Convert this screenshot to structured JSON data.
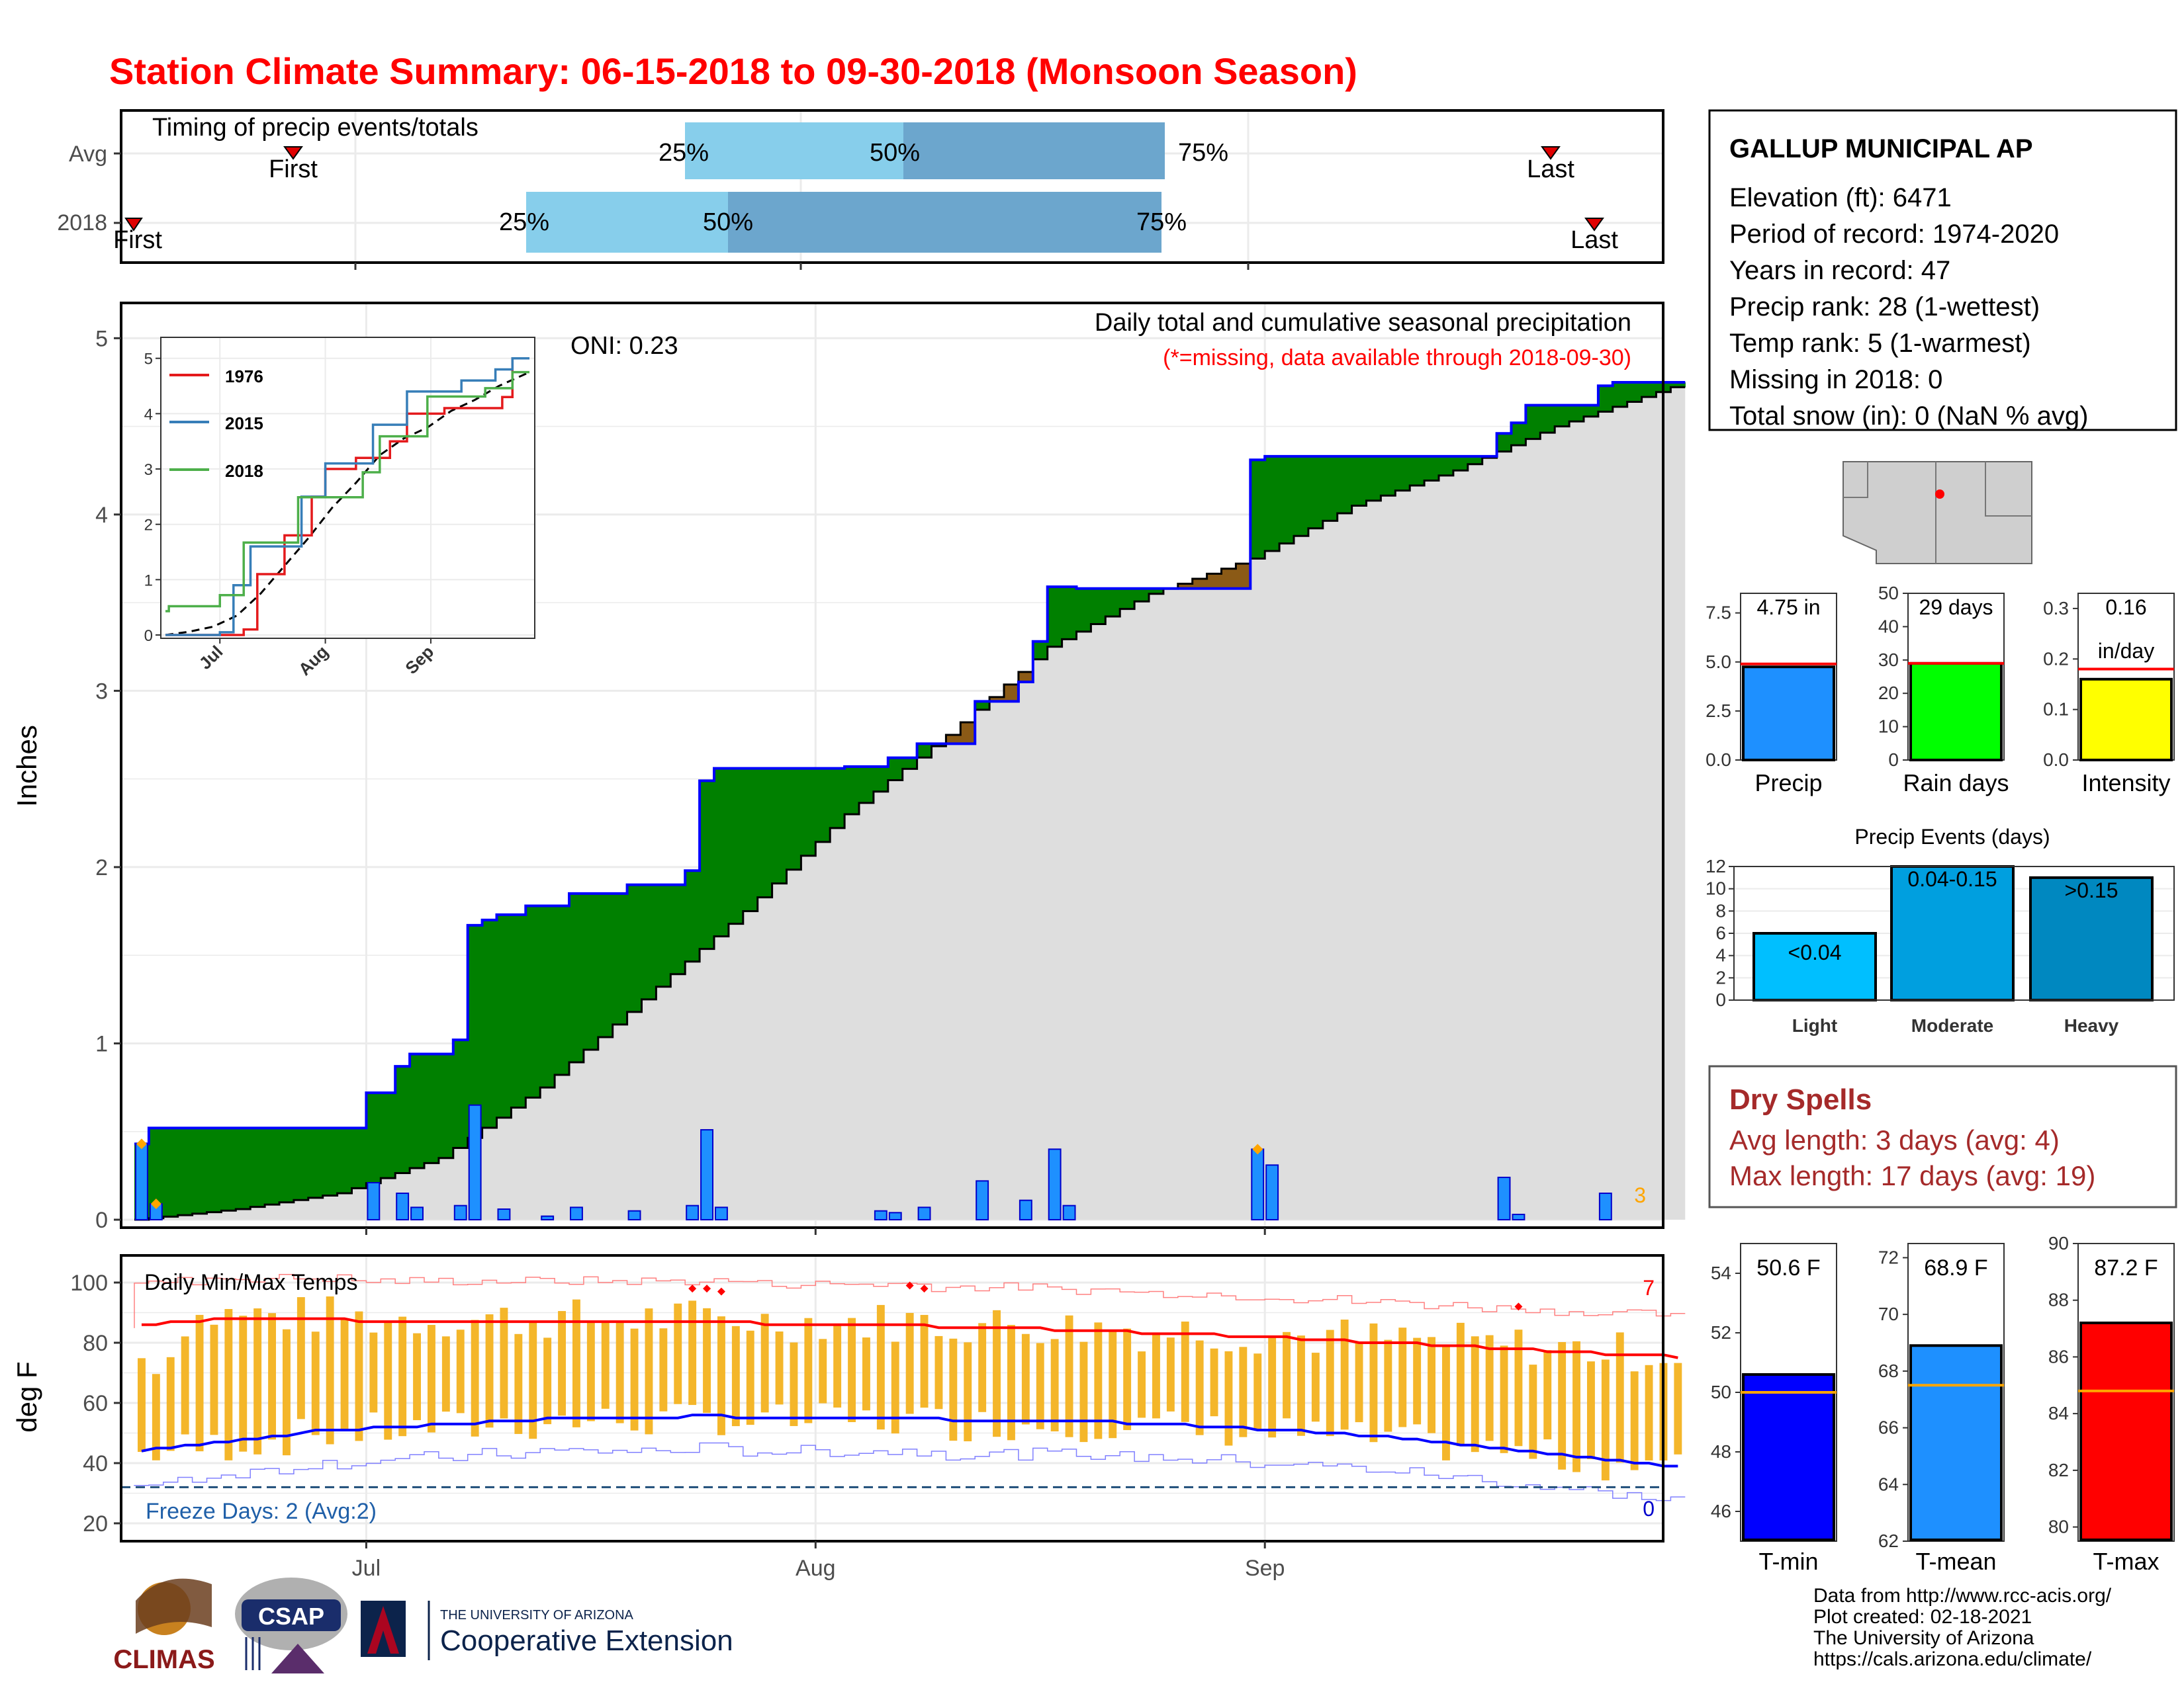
{
  "title": "Station Climate Summary: 06-15-2018 to 09-30-2018 (Monsoon Season)",
  "timing": {
    "label": "Timing of precip events/totals",
    "rows": [
      "Avg",
      "2018"
    ],
    "avg": {
      "first": "First",
      "last": "Last",
      "p25": "25%",
      "p50": "50%",
      "p75": "75%"
    },
    "y2018": {
      "first": "First",
      "last": "Last",
      "p25": "25%",
      "p50": "50%",
      "p75": "75%"
    }
  },
  "main": {
    "ylabel": "Inches",
    "annotation": "Daily total and cumulative seasonal precipitation",
    "missing_note": "(*=missing, data available through 2018-09-30)",
    "oni": "ONI: 0.23",
    "corner_count": "3",
    "yticks": [
      "0",
      "1",
      "2",
      "3",
      "4",
      "5"
    ]
  },
  "inset": {
    "legend": [
      "1976",
      "2015",
      "2018"
    ],
    "yticks": [
      "0",
      "1",
      "2",
      "3",
      "4",
      "5"
    ],
    "xticks": [
      "Jul",
      "Aug",
      "Sep"
    ],
    "colors": {
      "1976": "#e41a1c",
      "2015": "#377eb8",
      "2018": "#4daf4a"
    }
  },
  "temps": {
    "ylabel": "deg F",
    "label": "Daily Min/Max Temps",
    "freeze": "Freeze Days: 2 (Avg:2)",
    "hot_count": "7",
    "cold_count": "0",
    "yticks": [
      "20",
      "40",
      "60",
      "80",
      "100"
    ],
    "xticks": [
      "Jul",
      "Aug",
      "Sep"
    ]
  },
  "station": {
    "name": "GALLUP MUNICIPAL AP",
    "lines": [
      "Elevation (ft): 6471",
      "Period of record: 1974-2020",
      "Years in record: 47",
      "Precip rank: 28 (1-wettest)",
      "Temp rank: 5 (1-warmest)",
      "Missing in 2018: 0",
      "Total snow (in): 0 (NaN % avg)"
    ]
  },
  "mini_bars": [
    {
      "label": "Precip",
      "value_text": "4.75 in",
      "yticks": [
        "0.0",
        "2.5",
        "5.0",
        "7.5"
      ],
      "color": "#1e90ff"
    },
    {
      "label": "Rain days",
      "value_text": "29 days",
      "yticks": [
        "0",
        "10",
        "20",
        "30",
        "40",
        "50"
      ],
      "color": "#00ff00"
    },
    {
      "label": "Intensity",
      "value_text": "0.16",
      "value_text2": "in/day",
      "yticks": [
        "0.0",
        "0.1",
        "0.2",
        "0.3"
      ],
      "color": "#ffff00"
    }
  ],
  "events": {
    "title": "Precip Events (days)",
    "categories": [
      "Light",
      "Moderate",
      "Heavy"
    ],
    "bar_labels": [
      "<0.04",
      "0.04-0.15",
      ">0.15"
    ],
    "yticks": [
      "0",
      "2",
      "4",
      "6",
      "8",
      "10",
      "12"
    ]
  },
  "dry": {
    "title": "Dry Spells",
    "avg": "Avg length: 3 days (avg: 4)",
    "max": "Max length: 17 days (avg: 19)"
  },
  "temp_bars": [
    {
      "label": "T-min",
      "value_text": "50.6 F",
      "yticks": [
        "46",
        "48",
        "50",
        "52",
        "54"
      ],
      "color": "#0000ff"
    },
    {
      "label": "T-mean",
      "value_text": "68.9 F",
      "yticks": [
        "62",
        "64",
        "66",
        "68",
        "70",
        "72"
      ],
      "color": "#1e90ff"
    },
    {
      "label": "T-max",
      "value_text": "87.2 F",
      "yticks": [
        "80",
        "82",
        "84",
        "86",
        "88",
        "90"
      ],
      "color": "#ff0000"
    }
  ],
  "credits": [
    "Data from http://www.rcc-acis.org/",
    "Plot created: 02-18-2021",
    "The University of Arizona",
    "https://cals.arizona.edu/climate/"
  ],
  "logos": {
    "climas": "CLIMAS",
    "csap": "CSAP",
    "ua_small": "THE UNIVERSITY OF ARIZONA",
    "ua_big": "Cooperative Extension"
  },
  "chart_data": [
    {
      "type": "area",
      "title": "Daily total and cumulative seasonal precipitation",
      "ylabel": "Inches",
      "ylim": [
        0,
        5.2
      ],
      "xlim": [
        "2018-06-15",
        "2018-09-30"
      ],
      "series": [
        {
          "name": "2018",
          "step_points": [
            [
              "2018-06-15",
              0.43
            ],
            [
              "2018-06-16",
              0.52
            ],
            [
              "2018-07-01",
              0.72
            ],
            [
              "2018-07-03",
              0.87
            ],
            [
              "2018-07-04",
              0.94
            ],
            [
              "2018-07-07",
              1.02
            ],
            [
              "2018-07-08",
              1.67
            ],
            [
              "2018-07-09",
              1.7
            ],
            [
              "2018-07-10",
              1.73
            ],
            [
              "2018-07-12",
              1.78
            ],
            [
              "2018-07-15",
              1.85
            ],
            [
              "2018-07-19",
              1.9
            ],
            [
              "2018-07-23",
              1.98
            ],
            [
              "2018-07-24",
              2.49
            ],
            [
              "2018-07-25",
              2.56
            ],
            [
              "2018-08-03",
              2.57
            ],
            [
              "2018-08-06",
              2.62
            ],
            [
              "2018-08-08",
              2.7
            ],
            [
              "2018-08-12",
              2.94
            ],
            [
              "2018-08-15",
              3.05
            ],
            [
              "2018-08-16",
              3.28
            ],
            [
              "2018-08-17",
              3.59
            ],
            [
              "2018-08-19",
              3.58
            ],
            [
              "2018-08-31",
              4.31
            ],
            [
              "2018-09-01",
              4.33
            ],
            [
              "2018-09-17",
              4.46
            ],
            [
              "2018-09-18",
              4.52
            ],
            [
              "2018-09-19",
              4.62
            ],
            [
              "2018-09-24",
              4.73
            ],
            [
              "2018-09-25",
              4.75
            ]
          ]
        },
        {
          "name": "Average",
          "points": [
            [
              "2018-06-15",
              0.0
            ],
            [
              "2018-06-22",
              0.06
            ],
            [
              "2018-06-29",
              0.15
            ],
            [
              "2018-07-06",
              0.35
            ],
            [
              "2018-07-13",
              0.75
            ],
            [
              "2018-07-20",
              1.25
            ],
            [
              "2018-07-27",
              1.75
            ],
            [
              "2018-08-03",
              2.3
            ],
            [
              "2018-08-10",
              2.75
            ],
            [
              "2018-08-17",
              3.25
            ],
            [
              "2018-08-24",
              3.55
            ],
            [
              "2018-08-31",
              3.75
            ],
            [
              "2018-09-07",
              4.05
            ],
            [
              "2018-09-14",
              4.25
            ],
            [
              "2018-09-21",
              4.5
            ],
            [
              "2018-09-30",
              4.75
            ]
          ]
        }
      ],
      "daily_precip": [
        [
          "2018-06-15",
          0.43
        ],
        [
          "2018-06-16",
          0.09
        ],
        [
          "2018-07-01",
          0.21
        ],
        [
          "2018-07-03",
          0.15
        ],
        [
          "2018-07-04",
          0.07
        ],
        [
          "2018-07-07",
          0.08
        ],
        [
          "2018-07-08",
          0.65
        ],
        [
          "2018-07-10",
          0.06
        ],
        [
          "2018-07-13",
          0.02
        ],
        [
          "2018-07-15",
          0.07
        ],
        [
          "2018-07-19",
          0.05
        ],
        [
          "2018-07-23",
          0.08
        ],
        [
          "2018-07-24",
          0.51
        ],
        [
          "2018-07-25",
          0.07
        ],
        [
          "2018-08-05",
          0.05
        ],
        [
          "2018-08-06",
          0.04
        ],
        [
          "2018-08-08",
          0.07
        ],
        [
          "2018-08-12",
          0.22
        ],
        [
          "2018-08-15",
          0.11
        ],
        [
          "2018-08-17",
          0.4
        ],
        [
          "2018-08-18",
          0.08
        ],
        [
          "2018-08-31",
          0.4
        ],
        [
          "2018-09-01",
          0.31
        ],
        [
          "2018-09-17",
          0.24
        ],
        [
          "2018-09-18",
          0.03
        ],
        [
          "2018-09-24",
          0.15
        ]
      ]
    },
    {
      "type": "line",
      "title": "Inset cumulative precipitation comparison",
      "ylim": [
        0,
        5.2
      ],
      "series": [
        {
          "name": "1976",
          "points": [
            [
              "2018-06-15",
              0
            ],
            [
              "2018-07-08",
              0.1
            ],
            [
              "2018-07-12",
              1.1
            ],
            [
              "2018-07-20",
              1.8
            ],
            [
              "2018-07-28",
              2.5
            ],
            [
              "2018-08-01",
              3.0
            ],
            [
              "2018-08-10",
              3.2
            ],
            [
              "2018-08-20",
              3.5
            ],
            [
              "2018-08-25",
              4.0
            ],
            [
              "2018-09-05",
              4.1
            ],
            [
              "2018-09-22",
              4.3
            ],
            [
              "2018-09-25",
              5.0
            ]
          ]
        },
        {
          "name": "2015",
          "points": [
            [
              "2018-06-15",
              0
            ],
            [
              "2018-07-01",
              0.05
            ],
            [
              "2018-07-05",
              0.9
            ],
            [
              "2018-07-10",
              1.6
            ],
            [
              "2018-07-25",
              2.5
            ],
            [
              "2018-08-01",
              3.1
            ],
            [
              "2018-08-15",
              3.8
            ],
            [
              "2018-08-25",
              4.4
            ],
            [
              "2018-09-10",
              4.6
            ],
            [
              "2018-09-20",
              4.8
            ],
            [
              "2018-09-25",
              5.0
            ]
          ]
        },
        {
          "name": "2018",
          "points": [
            [
              "2018-06-15",
              0.43
            ],
            [
              "2018-06-16",
              0.52
            ],
            [
              "2018-07-01",
              0.72
            ],
            [
              "2018-07-08",
              1.67
            ],
            [
              "2018-07-24",
              2.49
            ],
            [
              "2018-08-12",
              2.94
            ],
            [
              "2018-08-17",
              3.59
            ],
            [
              "2018-08-31",
              4.31
            ],
            [
              "2018-09-17",
              4.46
            ],
            [
              "2018-09-25",
              4.75
            ]
          ]
        }
      ]
    },
    {
      "type": "bar",
      "title": "Daily Min/Max Temps",
      "ylabel": "deg F",
      "ylim": [
        18,
        104
      ],
      "series": [
        {
          "name": "T-max avg",
          "values_start": "2018-06-15",
          "values": [
            86,
            86,
            87,
            87,
            87,
            88,
            88,
            88,
            88,
            88,
            88,
            88,
            88,
            88,
            88,
            87,
            87,
            87,
            87,
            87,
            87,
            87,
            87,
            87,
            87,
            87,
            87,
            87,
            87,
            87,
            87,
            87,
            87,
            87,
            87,
            87,
            87,
            87,
            87,
            87,
            87,
            87,
            87,
            86,
            86,
            86,
            86,
            86,
            86,
            86,
            86,
            86,
            86,
            86,
            86,
            85,
            85,
            85,
            85,
            85,
            85,
            85,
            85,
            84,
            84,
            84,
            84,
            84,
            84,
            83,
            83,
            83,
            83,
            83,
            83,
            82,
            82,
            82,
            82,
            82,
            81,
            81,
            81,
            81,
            80,
            80,
            80,
            80,
            80,
            79,
            79,
            79,
            79,
            78,
            78,
            78,
            78,
            77,
            77,
            77,
            77,
            76,
            76,
            76,
            76,
            76,
            75,
            75
          ]
        },
        {
          "name": "T-min avg",
          "values_start": "2018-06-15",
          "values": [
            44,
            45,
            45,
            46,
            46,
            47,
            47,
            48,
            48,
            49,
            49,
            50,
            51,
            51,
            51,
            51,
            52,
            52,
            52,
            52,
            53,
            53,
            53,
            53,
            54,
            54,
            54,
            54,
            55,
            55,
            55,
            55,
            55,
            55,
            55,
            55,
            55,
            55,
            56,
            56,
            56,
            55,
            55,
            55,
            55,
            55,
            55,
            55,
            55,
            55,
            55,
            55,
            55,
            55,
            55,
            55,
            54,
            54,
            54,
            54,
            54,
            54,
            54,
            54,
            54,
            54,
            54,
            54,
            53,
            53,
            53,
            53,
            53,
            52,
            52,
            52,
            52,
            51,
            51,
            51,
            51,
            50,
            50,
            50,
            49,
            49,
            49,
            48,
            48,
            47,
            47,
            46,
            46,
            45,
            45,
            44,
            44,
            43,
            43,
            42,
            42,
            41,
            41,
            40,
            40,
            39,
            39,
            38
          ]
        }
      ],
      "annotations": [
        "Freeze Days: 2 (Avg:2)"
      ]
    },
    {
      "type": "bar",
      "title": "Season totals",
      "categories": [
        "Precip",
        "Rain days",
        "Intensity"
      ],
      "values": [
        4.75,
        29,
        0.16
      ],
      "averages": [
        4.9,
        29,
        0.18
      ],
      "ylims": [
        [
          0,
          8.5
        ],
        [
          0,
          50
        ],
        [
          0,
          0.33
        ]
      ]
    },
    {
      "type": "bar",
      "title": "Precip Events (days)",
      "categories": [
        "Light",
        "Moderate",
        "Heavy"
      ],
      "values": [
        6,
        12,
        11
      ],
      "ylim": [
        0,
        12
      ]
    },
    {
      "type": "bar",
      "title": "Mean temperatures",
      "categories": [
        "T-min",
        "T-mean",
        "T-max"
      ],
      "values": [
        50.6,
        68.9,
        87.2
      ],
      "averages": [
        50.0,
        67.5,
        84.8
      ],
      "ylims": [
        [
          45,
          55
        ],
        [
          62,
          72.5
        ],
        [
          79.5,
          90
        ]
      ]
    }
  ]
}
